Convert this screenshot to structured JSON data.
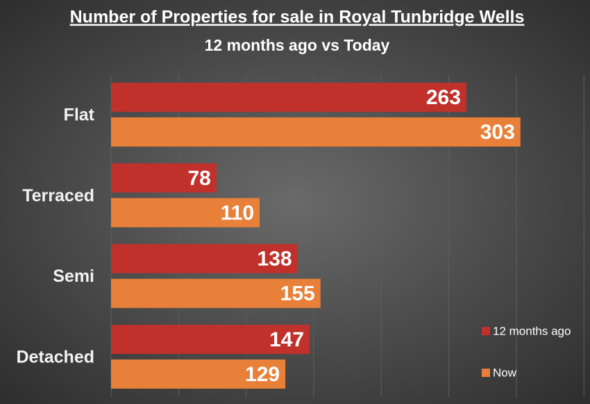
{
  "chart_data": {
    "type": "barh",
    "title": "Number of Properties for sale in Royal Tunbridge Wells",
    "subtitle": "12 months ago vs Today",
    "categories": [
      "Flat",
      "Terraced",
      "Semi",
      "Detached"
    ],
    "series": [
      {
        "name": "12 months ago",
        "color": "#c0312b",
        "values": [
          263,
          78,
          138,
          147
        ]
      },
      {
        "name": "Now",
        "color": "#e8803a",
        "values": [
          303,
          110,
          155,
          129
        ]
      }
    ],
    "xlim": [
      0,
      355
    ],
    "xticks": [
      0,
      50,
      100,
      150,
      200,
      250,
      300,
      350
    ],
    "grid": true,
    "legend": "right"
  }
}
